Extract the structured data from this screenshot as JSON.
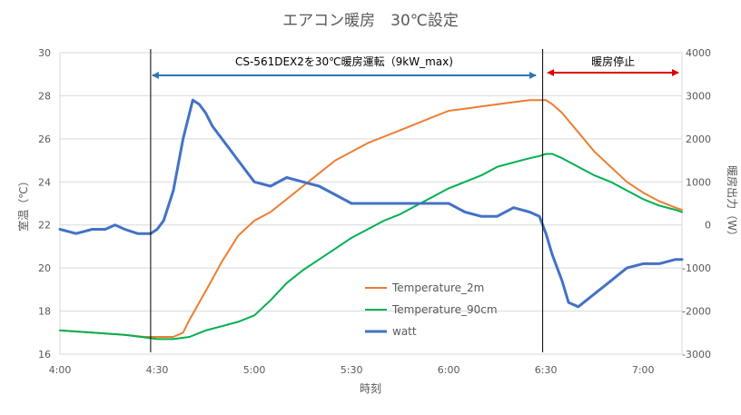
{
  "chart_data": {
    "type": "line",
    "title": "エアコン暖房　30℃設定",
    "xlabel": "時刻",
    "ylabel_left": "室温（℃）",
    "ylabel_right": "暖房出力（W）",
    "x_ticks": [
      "4:00",
      "4:30",
      "5:00",
      "5:30",
      "6:00",
      "6:30",
      "7:00"
    ],
    "x_tick_minutes": [
      0,
      30,
      60,
      90,
      120,
      150,
      180
    ],
    "x_range_minutes": [
      0,
      192
    ],
    "y_left_ticks": [
      "16",
      "18",
      "20",
      "22",
      "24",
      "26",
      "28",
      "30"
    ],
    "y_left_range": [
      16,
      30
    ],
    "y_right_ticks": [
      "-3000",
      "-2000",
      "-1000",
      "0",
      "1000",
      "2000",
      "3000",
      "4000"
    ],
    "y_right_range": [
      -3000,
      4000
    ],
    "grid": "horizontal",
    "legend_position": "inside-lower-center",
    "annotations": {
      "operation_label": "CS-561DEX2を30℃暖房運転（9kW_max)",
      "operation_range_minutes": [
        28,
        148
      ],
      "stop_label": "暖房停止",
      "stop_range_minutes": [
        150,
        192
      ],
      "vertical_marker_minutes": [
        28,
        149
      ]
    },
    "colors": {
      "temperature_2m": "#ED7D31",
      "temperature_90cm": "#00B050",
      "watt": "#4472C4",
      "operation_arrow": "#2E75B6",
      "stop_arrow": "#E00000",
      "grid": "#D9D9D9",
      "marker": "#000000"
    },
    "series": [
      {
        "name": "Temperature_2m",
        "axis": "left",
        "color": "#ED7D31",
        "x": [
          0,
          10,
          20,
          26,
          30,
          35,
          38,
          40,
          43,
          46,
          50,
          55,
          60,
          65,
          70,
          75,
          80,
          85,
          90,
          95,
          100,
          105,
          110,
          115,
          120,
          125,
          130,
          135,
          140,
          145,
          148,
          150,
          152,
          155,
          160,
          165,
          170,
          175,
          180,
          185,
          190,
          192
        ],
        "values": [
          17.1,
          17.0,
          16.9,
          16.8,
          16.8,
          16.8,
          17.0,
          17.6,
          18.4,
          19.2,
          20.3,
          21.5,
          22.2,
          22.6,
          23.2,
          23.8,
          24.4,
          25.0,
          25.4,
          25.8,
          26.1,
          26.4,
          26.7,
          27.0,
          27.3,
          27.4,
          27.5,
          27.6,
          27.7,
          27.8,
          27.8,
          27.8,
          27.6,
          27.2,
          26.3,
          25.4,
          24.7,
          24.0,
          23.5,
          23.1,
          22.8,
          22.7
        ]
      },
      {
        "name": "Temperature_90cm",
        "axis": "left",
        "color": "#00B050",
        "x": [
          0,
          10,
          20,
          25,
          30,
          35,
          40,
          45,
          50,
          55,
          60,
          65,
          70,
          75,
          80,
          85,
          90,
          95,
          100,
          105,
          110,
          115,
          120,
          125,
          130,
          135,
          140,
          145,
          148,
          150,
          152,
          155,
          160,
          165,
          170,
          175,
          180,
          185,
          190,
          192
        ],
        "values": [
          17.1,
          17.0,
          16.9,
          16.8,
          16.7,
          16.7,
          16.8,
          17.1,
          17.3,
          17.5,
          17.8,
          18.5,
          19.3,
          19.9,
          20.4,
          20.9,
          21.4,
          21.8,
          22.2,
          22.5,
          22.9,
          23.3,
          23.7,
          24.0,
          24.3,
          24.7,
          24.9,
          25.1,
          25.2,
          25.3,
          25.3,
          25.1,
          24.7,
          24.3,
          24.0,
          23.6,
          23.2,
          22.9,
          22.7,
          22.6
        ]
      },
      {
        "name": "watt",
        "axis": "right",
        "color": "#4472C4",
        "x": [
          0,
          5,
          10,
          14,
          17,
          20,
          24,
          28,
          30,
          32,
          35,
          38,
          41,
          43,
          45,
          47,
          49,
          52,
          55,
          60,
          65,
          70,
          75,
          80,
          85,
          90,
          95,
          100,
          105,
          110,
          115,
          120,
          125,
          130,
          135,
          140,
          145,
          148,
          150,
          152,
          155,
          157,
          160,
          165,
          170,
          175,
          180,
          185,
          190,
          192
        ],
        "values": [
          -100,
          -200,
          -100,
          -100,
          0,
          -100,
          -200,
          -200,
          -100,
          100,
          800,
          2000,
          2900,
          2800,
          2600,
          2300,
          2100,
          1800,
          1500,
          1000,
          900,
          1100,
          1000,
          900,
          700,
          500,
          500,
          500,
          500,
          500,
          500,
          500,
          300,
          200,
          200,
          400,
          300,
          200,
          -200,
          -700,
          -1300,
          -1800,
          -1900,
          -1600,
          -1300,
          -1000,
          -900,
          -900,
          -800,
          -800
        ]
      }
    ]
  }
}
